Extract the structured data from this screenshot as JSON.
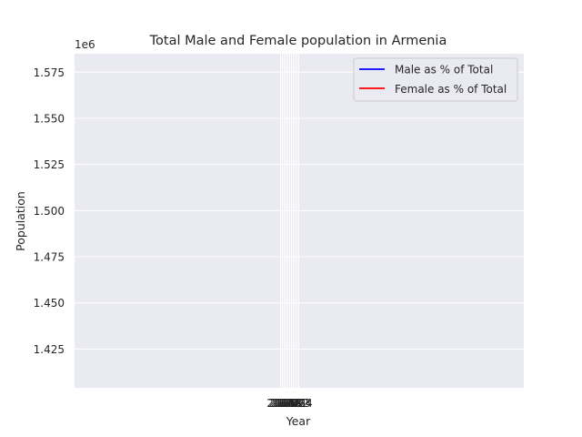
{
  "chart_data": {
    "type": "line",
    "title": "Total Male and Female population in Armenia",
    "xlabel": "Year",
    "ylabel": "Population",
    "y_offset_label": "1e6",
    "ylim": [
      1404000,
      1585000
    ],
    "yticks": [
      "1.425",
      "1.450",
      "1.475",
      "1.500",
      "1.525",
      "1.550",
      "1.575"
    ],
    "ytick_values": [
      1425000,
      1450000,
      1475000,
      1500000,
      1525000,
      1550000,
      1575000
    ],
    "xtick_labels": [
      "2014",
      "2015",
      "2016",
      "2017",
      "2018",
      "2019",
      "2020",
      "2021",
      "2022",
      "2023",
      "2024"
    ],
    "grid": true,
    "legend_position": "top-right",
    "series": [
      {
        "name": "Male as % of Total",
        "color": "#0000ff",
        "values": []
      },
      {
        "name": "Female as % of Total",
        "color": "#ff0000",
        "values": []
      }
    ]
  },
  "colors": {
    "plot_background": "#eaeaf2",
    "grid": "#ffffff",
    "text": "#262626"
  }
}
